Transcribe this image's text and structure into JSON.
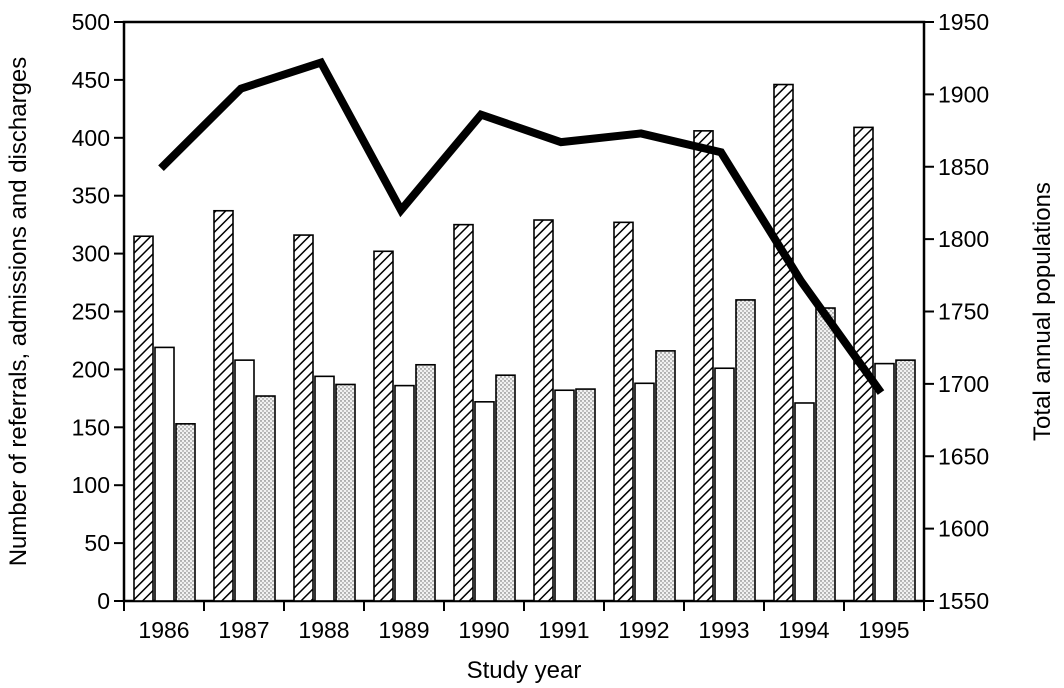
{
  "chart_data": {
    "type": "bar",
    "categories": [
      "1986",
      "1987",
      "1988",
      "1989",
      "1990",
      "1991",
      "1992",
      "1993",
      "1994",
      "1995"
    ],
    "xlabel": "Study year",
    "ylabel": "Number of referrals, admissions and discharges",
    "y2label": "Total annual populations",
    "ylim": [
      0,
      500
    ],
    "y2lim": [
      1550,
      1950
    ],
    "yticks": [
      0,
      50,
      100,
      150,
      200,
      250,
      300,
      350,
      400,
      450,
      500
    ],
    "y2ticks": [
      1550,
      1600,
      1650,
      1700,
      1750,
      1800,
      1850,
      1900,
      1950
    ],
    "series": [
      {
        "pattern": "diagonal-hatch",
        "values": [
          315,
          337,
          316,
          302,
          325,
          329,
          327,
          406,
          446,
          409
        ]
      },
      {
        "pattern": "white",
        "values": [
          219,
          208,
          194,
          186,
          172,
          182,
          188,
          201,
          171,
          205
        ]
      },
      {
        "pattern": "stipple",
        "values": [
          153,
          177,
          187,
          204,
          195,
          183,
          216,
          260,
          253,
          208
        ]
      }
    ],
    "line": {
      "axis": "right",
      "values": [
        1849,
        1904,
        1922,
        1820,
        1886,
        1867,
        1873,
        1860,
        1771,
        1694
      ]
    },
    "grid": false,
    "legend": "none"
  }
}
